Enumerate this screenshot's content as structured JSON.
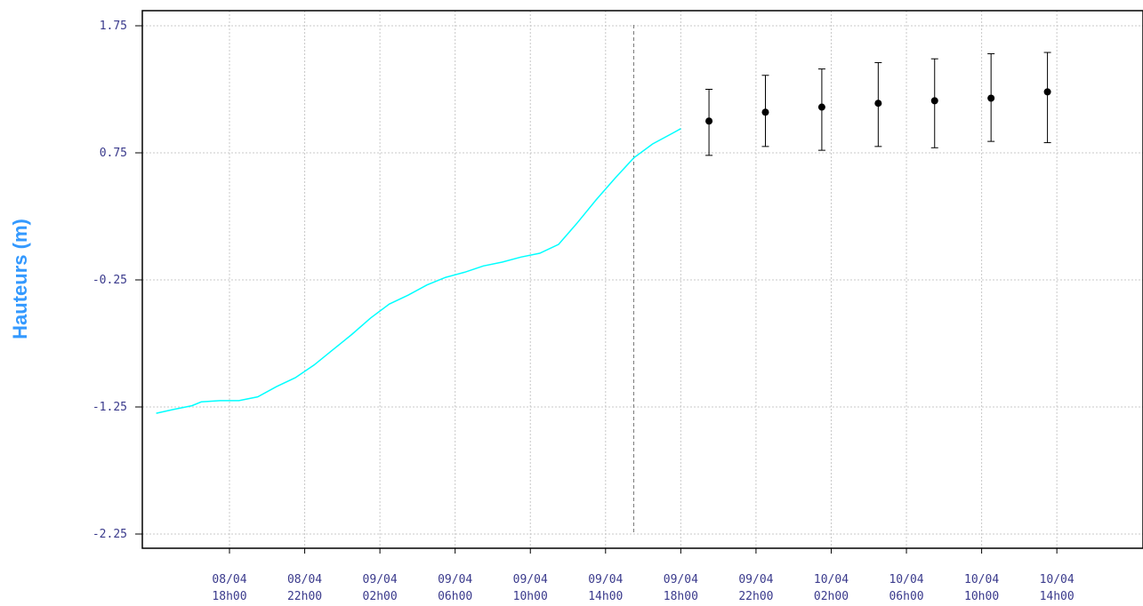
{
  "chart_data": {
    "type": "line",
    "title": "",
    "xlabel": "",
    "ylabel": "Hauteurs (m)",
    "ylim": [
      -2.25,
      1.75
    ],
    "yticks": [
      "1.75",
      "0.75",
      "-0.25",
      "-1.25",
      "-2.25"
    ],
    "ytick_values": [
      1.75,
      0.75,
      -0.25,
      -1.25,
      -2.25
    ],
    "xlim_hours": [
      -2,
      54.5
    ],
    "xticks": [
      {
        "date": "08/04",
        "time": "18h00",
        "hour": 0
      },
      {
        "date": "08/04",
        "time": "22h00",
        "hour": 4
      },
      {
        "date": "09/04",
        "time": "02h00",
        "hour": 8
      },
      {
        "date": "09/04",
        "time": "06h00",
        "hour": 12
      },
      {
        "date": "09/04",
        "time": "10h00",
        "hour": 16
      },
      {
        "date": "09/04",
        "time": "14h00",
        "hour": 20
      },
      {
        "date": "09/04",
        "time": "18h00",
        "hour": 24
      },
      {
        "date": "09/04",
        "time": "22h00",
        "hour": 28
      },
      {
        "date": "10/04",
        "time": "02h00",
        "hour": 32
      },
      {
        "date": "10/04",
        "time": "06h00",
        "hour": 36
      },
      {
        "date": "10/04",
        "time": "10h00",
        "hour": 40
      },
      {
        "date": "10/04",
        "time": "14h00",
        "hour": 44
      }
    ],
    "grid": true,
    "forecast_start_hour": 21.5,
    "observed": {
      "color": "#00ffff",
      "points": [
        [
          -3.9,
          -1.3
        ],
        [
          -3.0,
          -1.27
        ],
        [
          -2.0,
          -1.24
        ],
        [
          -1.5,
          -1.21
        ],
        [
          -0.5,
          -1.2
        ],
        [
          0.5,
          -1.2
        ],
        [
          1.5,
          -1.17
        ],
        [
          2.5,
          -1.09
        ],
        [
          3.5,
          -1.02
        ],
        [
          4.5,
          -0.92
        ],
        [
          5.5,
          -0.8
        ],
        [
          6.5,
          -0.68
        ],
        [
          7.5,
          -0.55
        ],
        [
          8.5,
          -0.44
        ],
        [
          9.5,
          -0.37
        ],
        [
          10.5,
          -0.29
        ],
        [
          11.5,
          -0.23
        ],
        [
          12.5,
          -0.19
        ],
        [
          13.5,
          -0.14
        ],
        [
          14.5,
          -0.11
        ],
        [
          15.5,
          -0.07
        ],
        [
          16.5,
          -0.04
        ],
        [
          17.5,
          0.03
        ],
        [
          18.5,
          0.2
        ],
        [
          19.5,
          0.38
        ],
        [
          20.5,
          0.55
        ],
        [
          21.5,
          0.71
        ],
        [
          22.5,
          0.82
        ],
        [
          23.5,
          0.9
        ],
        [
          24.0,
          0.94
        ]
      ]
    },
    "forecast": {
      "color": "#000000",
      "points": [
        {
          "hour": 25.5,
          "value": 1.0,
          "low": 0.73,
          "high": 1.25
        },
        {
          "hour": 28.5,
          "value": 1.07,
          "low": 0.8,
          "high": 1.36
        },
        {
          "hour": 31.5,
          "value": 1.11,
          "low": 0.77,
          "high": 1.41
        },
        {
          "hour": 34.5,
          "value": 1.14,
          "low": 0.8,
          "high": 1.46
        },
        {
          "hour": 37.5,
          "value": 1.16,
          "low": 0.79,
          "high": 1.49
        },
        {
          "hour": 40.5,
          "value": 1.18,
          "low": 0.84,
          "high": 1.53
        },
        {
          "hour": 43.5,
          "value": 1.23,
          "low": 0.83,
          "high": 1.54
        }
      ]
    }
  }
}
